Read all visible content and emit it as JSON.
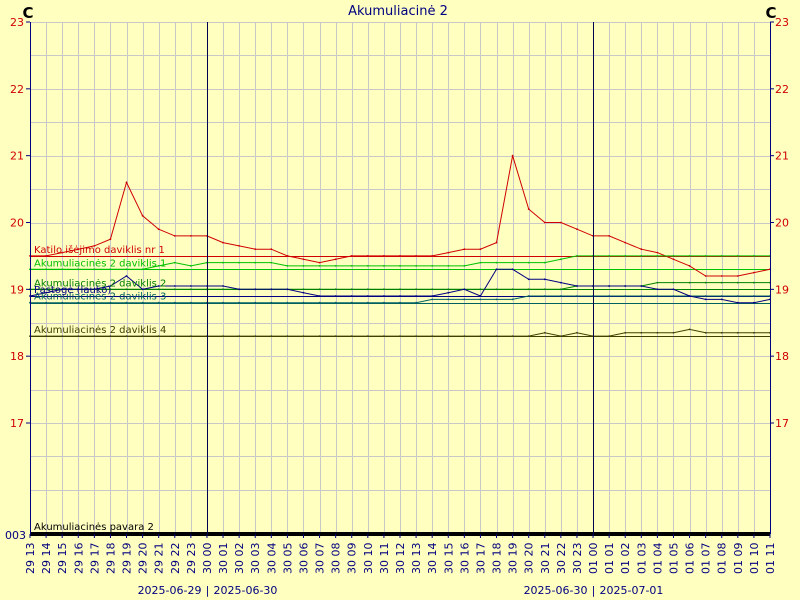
{
  "chart_data": {
    "type": "line",
    "title": "Akumuliacinė 2",
    "unit_left": "C",
    "unit_right": "C",
    "ylim": [
      16,
      23
    ],
    "y_ticks": [
      17,
      18,
      19,
      20,
      21,
      22,
      23
    ],
    "bottom_tick_label": "003",
    "grid": true,
    "x_tick_labels": [
      "29 13",
      "29 14",
      "29 15",
      "29 16",
      "29 17",
      "29 18",
      "29 19",
      "29 20",
      "29 21",
      "29 22",
      "29 23",
      "30 00",
      "30 01",
      "30 02",
      "30 03",
      "30 04",
      "30 05",
      "30 06",
      "30 07",
      "30 08",
      "30 09",
      "30 10",
      "30 11",
      "30 12",
      "30 13",
      "30 14",
      "30 15",
      "30 16",
      "30 17",
      "30 18",
      "30 19",
      "30 20",
      "30 21",
      "30 22",
      "30 23",
      "01 00",
      "01 01",
      "01 02",
      "01 03",
      "01 04",
      "01 05",
      "01 06",
      "01 07",
      "01 08",
      "01 09",
      "01 10",
      "01 11"
    ],
    "day_separators": [
      {
        "tick_index": 11,
        "left_date": "2025-06-29",
        "right_date": "2025-06-30"
      },
      {
        "tick_index": 35,
        "left_date": "2025-06-30",
        "right_date": "2025-07-01"
      }
    ],
    "x_hours": [
      0,
      1,
      2,
      3,
      4,
      5,
      6,
      7,
      8,
      9,
      10,
      11,
      12,
      13,
      14,
      15,
      16,
      17,
      18,
      19,
      20,
      21,
      22,
      23,
      24,
      25,
      26,
      27,
      28,
      29,
      30,
      31,
      32,
      33,
      34,
      35,
      36,
      37,
      38,
      39,
      40,
      41,
      42,
      43,
      44,
      45,
      46
    ],
    "series": [
      {
        "name": "Katilo išėjimo daviklis nr 1",
        "color": "#d00000",
        "values": [
          19.5,
          19.5,
          19.55,
          19.6,
          19.65,
          19.75,
          20.6,
          20.1,
          19.9,
          19.8,
          19.8,
          19.8,
          19.7,
          19.65,
          19.6,
          19.6,
          19.5,
          19.45,
          19.4,
          19.45,
          19.5,
          19.5,
          19.5,
          19.5,
          19.5,
          19.5,
          19.55,
          19.6,
          19.6,
          19.7,
          21.0,
          20.2,
          20.0,
          20.0,
          19.9,
          19.8,
          19.8,
          19.7,
          19.6,
          19.55,
          19.45,
          19.35,
          19.2,
          19.2,
          19.2,
          19.25,
          19.3
        ]
      },
      {
        "name": "Akumuliacinės 2 daviklis 1",
        "color": "#00c000",
        "values": [
          19.3,
          19.3,
          19.3,
          19.3,
          19.3,
          19.3,
          19.3,
          19.3,
          19.35,
          19.4,
          19.35,
          19.4,
          19.4,
          19.4,
          19.4,
          19.4,
          19.35,
          19.35,
          19.35,
          19.35,
          19.35,
          19.35,
          19.35,
          19.35,
          19.35,
          19.35,
          19.35,
          19.35,
          19.4,
          19.4,
          19.4,
          19.4,
          19.4,
          19.45,
          19.5,
          19.5,
          19.5,
          19.5,
          19.5,
          19.5,
          19.5,
          19.5,
          19.5,
          19.5,
          19.5,
          19.5,
          19.5
        ]
      },
      {
        "name": "Akumuliacinės 2 daviklis 2",
        "color": "#008000",
        "values": [
          19.0,
          19.0,
          19.0,
          19.0,
          19.0,
          19.0,
          19.0,
          19.0,
          19.0,
          19.0,
          19.0,
          19.0,
          19.0,
          19.0,
          19.0,
          19.0,
          19.0,
          19.0,
          19.0,
          19.0,
          19.0,
          19.0,
          19.0,
          19.0,
          19.0,
          19.0,
          19.0,
          19.0,
          19.0,
          19.0,
          19.0,
          19.0,
          19.0,
          19.0,
          19.05,
          19.05,
          19.05,
          19.05,
          19.05,
          19.1,
          19.1,
          19.1,
          19.1,
          19.1,
          19.1,
          19.1,
          19.1
        ]
      },
      {
        "name": "Akumuliacinės 2 daviklis 3",
        "color": "#006060",
        "values": [
          18.8,
          18.8,
          18.8,
          18.8,
          18.8,
          18.8,
          18.8,
          18.8,
          18.8,
          18.8,
          18.8,
          18.8,
          18.8,
          18.8,
          18.8,
          18.8,
          18.8,
          18.8,
          18.8,
          18.8,
          18.8,
          18.8,
          18.8,
          18.8,
          18.8,
          18.85,
          18.85,
          18.85,
          18.85,
          18.85,
          18.85,
          18.9,
          18.9,
          18.9,
          18.9,
          18.9,
          18.9,
          18.9,
          18.9,
          18.9,
          18.9,
          18.9,
          18.9,
          18.9,
          18.9,
          18.9,
          18.9
        ]
      },
      {
        "name": "Pastogė (lauko)",
        "color": "#000080",
        "values": [
          18.9,
          18.95,
          19.0,
          19.0,
          19.0,
          19.05,
          19.2,
          19.0,
          19.05,
          19.05,
          19.05,
          19.05,
          19.05,
          19.0,
          19.0,
          19.0,
          19.0,
          18.95,
          18.9,
          18.9,
          18.9,
          18.9,
          18.9,
          18.9,
          18.9,
          18.9,
          18.95,
          19.0,
          18.9,
          19.3,
          19.3,
          19.15,
          19.15,
          19.1,
          19.05,
          19.05,
          19.05,
          19.05,
          19.05,
          19.0,
          19.0,
          18.9,
          18.85,
          18.85,
          18.8,
          18.8,
          18.85
        ]
      },
      {
        "name": "Akumuliacinės 2 daviklis 4",
        "color": "#404000",
        "values": [
          18.3,
          18.3,
          18.3,
          18.3,
          18.3,
          18.3,
          18.3,
          18.3,
          18.3,
          18.3,
          18.3,
          18.3,
          18.3,
          18.3,
          18.3,
          18.3,
          18.3,
          18.3,
          18.3,
          18.3,
          18.3,
          18.3,
          18.3,
          18.3,
          18.3,
          18.3,
          18.3,
          18.3,
          18.3,
          18.3,
          18.3,
          18.3,
          18.35,
          18.3,
          18.35,
          18.3,
          18.3,
          18.35,
          18.35,
          18.35,
          18.35,
          18.4,
          18.35,
          18.35,
          18.35,
          18.35,
          18.35
        ]
      }
    ],
    "discrete_series": {
      "name": "Akumuliacinės pavara 2",
      "color": "#000000",
      "value": "0"
    }
  }
}
